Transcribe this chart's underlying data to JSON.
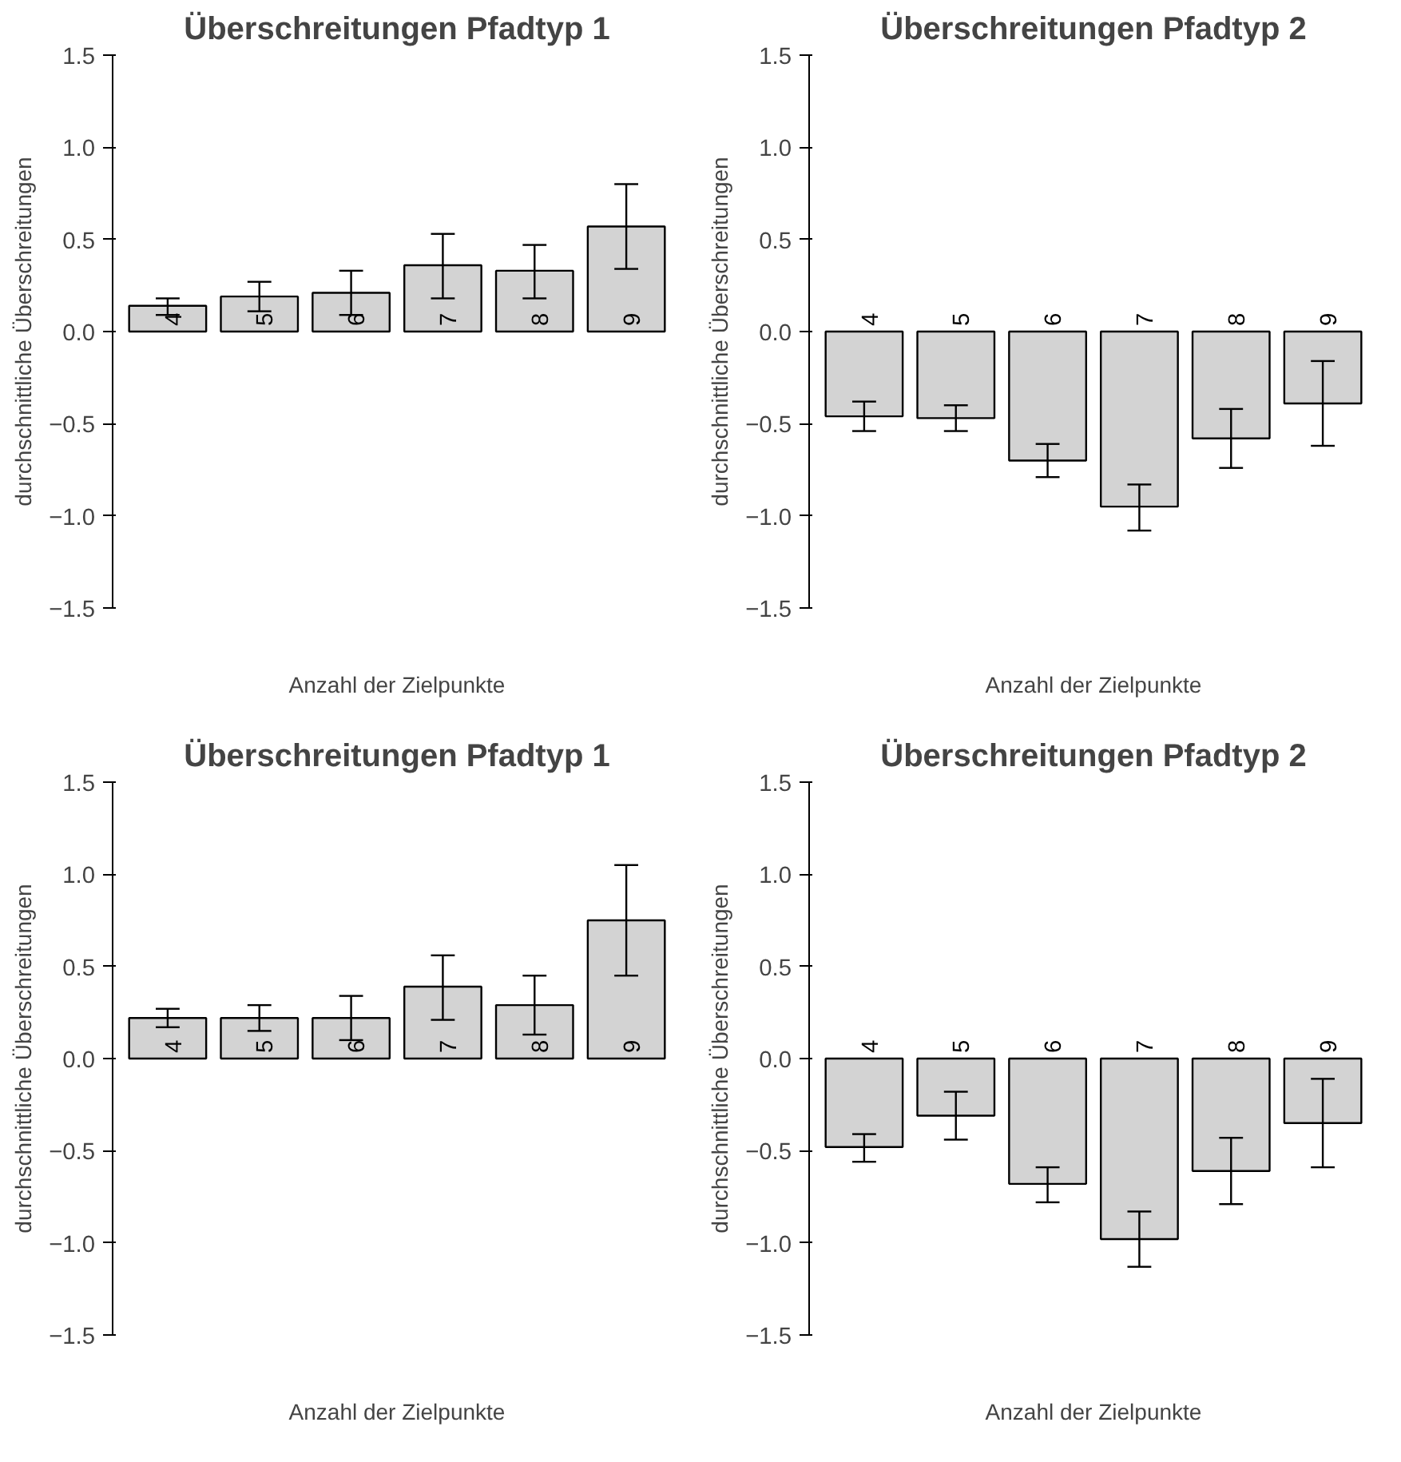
{
  "chart_data": [
    {
      "type": "bar",
      "title": "Überschreitungen Pfadtyp 1",
      "xlabel": "Anzahl der Zielpunkte",
      "ylabel": "durchschnittliche Überschreitungen",
      "categories": [
        "4",
        "5",
        "6",
        "7",
        "8",
        "9"
      ],
      "color": "#d3d3d3",
      "values": [
        0.14,
        0.19,
        0.21,
        0.36,
        0.33,
        0.57
      ],
      "errors": [
        [
          0.09,
          0.18
        ],
        [
          0.11,
          0.27
        ],
        [
          0.09,
          0.33
        ],
        [
          0.18,
          0.53
        ],
        [
          0.18,
          0.47
        ],
        [
          0.34,
          0.8
        ]
      ],
      "ylim": [
        -1.5,
        1.5
      ],
      "yticks": [
        {
          "value": -1.5,
          "label": "−1.5"
        },
        {
          "value": -1,
          "label": "−1.0"
        },
        {
          "value": -0.5,
          "label": "−0.5"
        },
        {
          "value": 0,
          "label": "0.0"
        },
        {
          "value": 0.5,
          "label": "0.5"
        },
        {
          "value": 1,
          "label": "1.0"
        },
        {
          "value": 1.5,
          "label": "1.5"
        }
      ]
    },
    {
      "type": "bar",
      "title": "Überschreitungen Pfadtyp 2",
      "xlabel": "Anzahl der Zielpunkte",
      "ylabel": "durchschnittliche Überschreitungen",
      "categories": [
        "4",
        "5",
        "6",
        "7",
        "8",
        "9"
      ],
      "color": "#d3d3d3",
      "values": [
        -0.46,
        -0.47,
        -0.7,
        -0.95,
        -0.58,
        -0.39
      ],
      "errors": [
        [
          -0.54,
          -0.38
        ],
        [
          -0.54,
          -0.4
        ],
        [
          -0.79,
          -0.61
        ],
        [
          -1.08,
          -0.83
        ],
        [
          -0.74,
          -0.42
        ],
        [
          -0.62,
          -0.16
        ]
      ],
      "ylim": [
        -1.5,
        1.5
      ],
      "yticks": [
        {
          "value": -1.5,
          "label": "−1.5"
        },
        {
          "value": -1,
          "label": "−1.0"
        },
        {
          "value": -0.5,
          "label": "−0.5"
        },
        {
          "value": 0,
          "label": "0.0"
        },
        {
          "value": 0.5,
          "label": "0.5"
        },
        {
          "value": 1,
          "label": "1.0"
        },
        {
          "value": 1.5,
          "label": "1.5"
        }
      ]
    },
    {
      "type": "bar",
      "title": "Überschreitungen Pfadtyp 1",
      "xlabel": "Anzahl der Zielpunkte",
      "ylabel": "durchschnittliche Überschreitungen",
      "categories": [
        "4",
        "5",
        "6",
        "7",
        "8",
        "9"
      ],
      "color": "#d3d3d3",
      "values": [
        0.22,
        0.22,
        0.22,
        0.39,
        0.29,
        0.75
      ],
      "errors": [
        [
          0.17,
          0.27
        ],
        [
          0.15,
          0.29
        ],
        [
          0.1,
          0.34
        ],
        [
          0.21,
          0.56
        ],
        [
          0.13,
          0.45
        ],
        [
          0.45,
          1.05
        ]
      ],
      "ylim": [
        -1.5,
        1.5
      ],
      "yticks": [
        {
          "value": -1.5,
          "label": "−1.5"
        },
        {
          "value": -1,
          "label": "−1.0"
        },
        {
          "value": -0.5,
          "label": "−0.5"
        },
        {
          "value": 0,
          "label": "0.0"
        },
        {
          "value": 0.5,
          "label": "0.5"
        },
        {
          "value": 1,
          "label": "1.0"
        },
        {
          "value": 1.5,
          "label": "1.5"
        }
      ]
    },
    {
      "type": "bar",
      "title": "Überschreitungen Pfadtyp 2",
      "xlabel": "Anzahl der Zielpunkte",
      "ylabel": "durchschnittliche Überschreitungen",
      "categories": [
        "4",
        "5",
        "6",
        "7",
        "8",
        "9"
      ],
      "color": "#d3d3d3",
      "values": [
        -0.48,
        -0.31,
        -0.68,
        -0.98,
        -0.61,
        -0.35
      ],
      "errors": [
        [
          -0.56,
          -0.41
        ],
        [
          -0.44,
          -0.18
        ],
        [
          -0.78,
          -0.59
        ],
        [
          -1.13,
          -0.83
        ],
        [
          -0.79,
          -0.43
        ],
        [
          -0.59,
          -0.11
        ]
      ],
      "ylim": [
        -1.5,
        1.5
      ],
      "yticks": [
        {
          "value": -1.5,
          "label": "−1.5"
        },
        {
          "value": -1,
          "label": "−1.0"
        },
        {
          "value": -0.5,
          "label": "−0.5"
        },
        {
          "value": 0,
          "label": "0.0"
        },
        {
          "value": 0.5,
          "label": "0.5"
        },
        {
          "value": 1,
          "label": "1.0"
        },
        {
          "value": 1.5,
          "label": "1.5"
        }
      ]
    }
  ]
}
